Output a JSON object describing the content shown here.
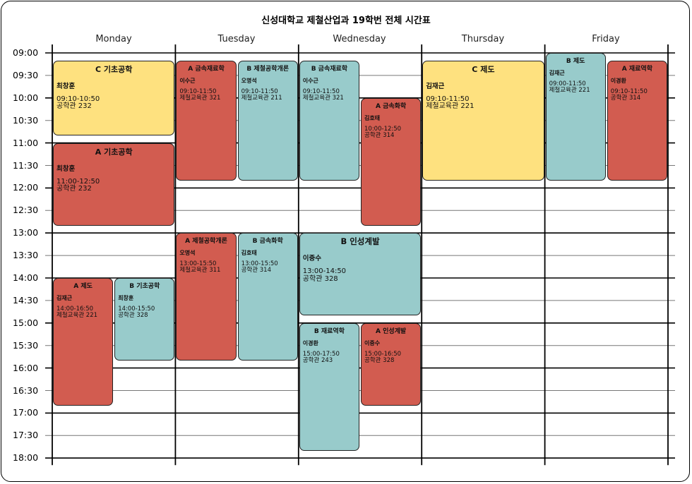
{
  "title": "신성대학교 제철산업과 19학번 전체 시간표",
  "days": [
    "Monday",
    "Tuesday",
    "Wednesday",
    "Thursday",
    "Friday"
  ],
  "times": [
    "09:00",
    "09:30",
    "10:00",
    "10:30",
    "11:00",
    "11:30",
    "12:00",
    "12:30",
    "13:00",
    "13:30",
    "14:00",
    "14:30",
    "15:00",
    "15:30",
    "16:00",
    "16:30",
    "17:00",
    "17:30",
    "18:00"
  ],
  "colors": {
    "red": "#d25c50",
    "teal": "#98cbcb",
    "yellow": "#fee17f"
  },
  "events": [
    {
      "day": 0,
      "start": "09:10",
      "end": "10:50",
      "col": 0,
      "span": 2,
      "color": "yellow",
      "title": "C 기초공학",
      "prof": "최창훈",
      "time": "09:10-10:50",
      "room": "공학관 232"
    },
    {
      "day": 0,
      "start": "11:00",
      "end": "12:50",
      "col": 0,
      "span": 2,
      "color": "red",
      "title": "A 기초공학",
      "prof": "최창훈",
      "time": "11:00-12:50",
      "room": "공학관 232"
    },
    {
      "day": 0,
      "start": "14:00",
      "end": "16:50",
      "col": 0,
      "span": 1,
      "color": "red",
      "title": "A 제도",
      "prof": "김재근",
      "time": "14:00-16:50",
      "room": "제철교육관 221"
    },
    {
      "day": 0,
      "start": "14:00",
      "end": "15:50",
      "col": 1,
      "span": 1,
      "color": "teal",
      "title": "B 기초공학",
      "prof": "최창훈",
      "time": "14:00-15:50",
      "room": "공학관 328"
    },
    {
      "day": 1,
      "start": "09:10",
      "end": "11:50",
      "col": 0,
      "span": 1,
      "color": "red",
      "title": "A 금속재료학",
      "prof": "이수근",
      "time": "09:10-11:50",
      "room": "제철교육관 321"
    },
    {
      "day": 1,
      "start": "09:10",
      "end": "11:50",
      "col": 1,
      "span": 1,
      "color": "teal",
      "title": "B 제철공학개론",
      "prof": "오명석",
      "time": "09:10-11:50",
      "room": "제철교육관 211"
    },
    {
      "day": 1,
      "start": "13:00",
      "end": "15:50",
      "col": 0,
      "span": 1,
      "color": "red",
      "title": "A 제철공학개론",
      "prof": "오명석",
      "time": "13:00-15:50",
      "room": "제철교육관 311"
    },
    {
      "day": 1,
      "start": "13:00",
      "end": "15:50",
      "col": 1,
      "span": 1,
      "color": "teal",
      "title": "B 금속화학",
      "prof": "김호태",
      "time": "13:00-15:50",
      "room": "공학관 314"
    },
    {
      "day": 2,
      "start": "09:10",
      "end": "11:50",
      "col": 0,
      "span": 1,
      "color": "teal",
      "title": "B 금속재료학",
      "prof": "이수근",
      "time": "09:10-11:50",
      "room": "제철교육관 321"
    },
    {
      "day": 2,
      "start": "10:00",
      "end": "12:50",
      "col": 1,
      "span": 1,
      "color": "red",
      "title": "A 금속화학",
      "prof": "김호태",
      "time": "10:00-12:50",
      "room": "공학관 314"
    },
    {
      "day": 2,
      "start": "13:00",
      "end": "14:50",
      "col": 0,
      "span": 2,
      "color": "teal",
      "title": "B 인성계발",
      "prof": "이중수",
      "time": "13:00-14:50",
      "room": "공학관 328"
    },
    {
      "day": 2,
      "start": "15:00",
      "end": "17:50",
      "col": 0,
      "span": 1,
      "color": "teal",
      "title": "B 재료역학",
      "prof": "이경환",
      "time": "15:00-17:50",
      "room": "공학관 243"
    },
    {
      "day": 2,
      "start": "15:00",
      "end": "16:50",
      "col": 1,
      "span": 1,
      "color": "red",
      "title": "A 인성계발",
      "prof": "이중수",
      "time": "15:00-16:50",
      "room": "공학관 328"
    },
    {
      "day": 3,
      "start": "09:10",
      "end": "11:50",
      "col": 0,
      "span": 2,
      "color": "yellow",
      "title": "C 제도",
      "prof": "김재근",
      "time": "09:10-11:50",
      "room": "제철교육관 221"
    },
    {
      "day": 4,
      "start": "09:00",
      "end": "11:50",
      "col": 0,
      "span": 1,
      "color": "teal",
      "title": "B 제도",
      "prof": "김재근",
      "time": "09:00-11:50",
      "room": "제철교육관 221"
    },
    {
      "day": 4,
      "start": "09:10",
      "end": "11:50",
      "col": 1,
      "span": 1,
      "color": "red",
      "title": "A 재료역학",
      "prof": "이경환",
      "time": "09:10-11:50",
      "room": "공학관 314"
    }
  ]
}
